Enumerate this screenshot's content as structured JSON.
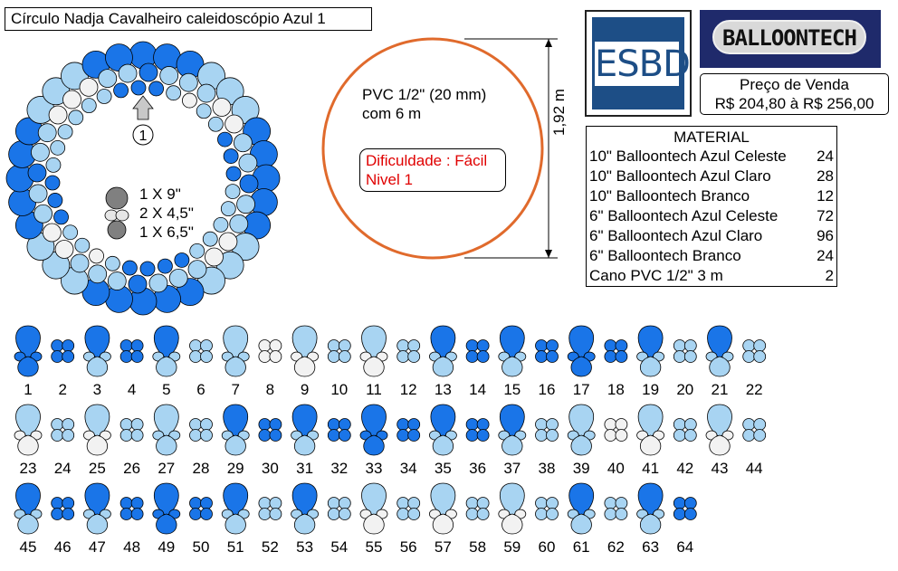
{
  "title": "Círculo Nadja Cavalheiro caleidoscópio  Azul 1",
  "logos": {
    "esbd": "ESBD",
    "balloontech": "BALLOONTECH"
  },
  "price": {
    "label": "Preço de Venda",
    "range": "R$ 204,80 à R$ 256,00"
  },
  "material": {
    "title": "MATERIAL",
    "items": [
      {
        "name": "10\" Balloontech Azul Celeste",
        "qty": "24"
      },
      {
        "name": "10\" Balloontech Azul Claro",
        "qty": "28"
      },
      {
        "name": "10\" Balloontech Branco",
        "qty": "12"
      },
      {
        "name": "6\" Balloontech Azul Celeste",
        "qty": "72"
      },
      {
        "name": "6\" Balloontech Azul Claro",
        "qty": "96"
      },
      {
        "name": "6\" Balloontech Branco",
        "qty": "24"
      },
      {
        "name": "Cano PVC 1/2\" 3 m",
        "qty": "2"
      }
    ]
  },
  "pvc": {
    "line1": "PVC 1/2\" (20 mm)",
    "line2": "com 6 m"
  },
  "difficulty": {
    "line1": "Dificuldade : Fácil",
    "line2": "Nivel 1"
  },
  "dimension": "1,92 m",
  "legend": {
    "line1": "1 X 9\"",
    "line2": "2 X 4,5\"",
    "line3": "1 X 6,5\""
  },
  "start_marker": "1",
  "colors": {
    "celeste": "#1a75e8",
    "claro": "#a8d4f2",
    "branco": "#f2f2f2",
    "gray": "#808080",
    "ring": "#e06a2c"
  },
  "sequence": [
    {
      "n": "1",
      "type": "pattern",
      "top": "celeste",
      "bottom": "celeste"
    },
    {
      "n": "2",
      "type": "cluster",
      "color": "celeste"
    },
    {
      "n": "3",
      "type": "pattern",
      "top": "celeste",
      "bottom": "claro"
    },
    {
      "n": "4",
      "type": "cluster",
      "color": "celeste"
    },
    {
      "n": "5",
      "type": "pattern",
      "top": "celeste",
      "bottom": "claro"
    },
    {
      "n": "6",
      "type": "cluster",
      "color": "claro"
    },
    {
      "n": "7",
      "type": "pattern",
      "top": "claro",
      "bottom": "claro"
    },
    {
      "n": "8",
      "type": "cluster",
      "color": "branco"
    },
    {
      "n": "9",
      "type": "pattern",
      "top": "claro",
      "bottom": "branco"
    },
    {
      "n": "10",
      "type": "cluster",
      "color": "claro"
    },
    {
      "n": "11",
      "type": "pattern",
      "top": "claro",
      "bottom": "branco"
    },
    {
      "n": "12",
      "type": "cluster",
      "color": "claro"
    },
    {
      "n": "13",
      "type": "pattern",
      "top": "celeste",
      "bottom": "claro"
    },
    {
      "n": "14",
      "type": "cluster",
      "color": "celeste"
    },
    {
      "n": "15",
      "type": "pattern",
      "top": "celeste",
      "bottom": "claro"
    },
    {
      "n": "16",
      "type": "cluster",
      "color": "celeste"
    },
    {
      "n": "17",
      "type": "pattern",
      "top": "celeste",
      "bottom": "celeste"
    },
    {
      "n": "18",
      "type": "cluster",
      "color": "celeste"
    },
    {
      "n": "19",
      "type": "pattern",
      "top": "celeste",
      "bottom": "claro"
    },
    {
      "n": "20",
      "type": "cluster",
      "color": "claro"
    },
    {
      "n": "21",
      "type": "pattern",
      "top": "celeste",
      "bottom": "claro"
    },
    {
      "n": "22",
      "type": "cluster",
      "color": "claro"
    },
    {
      "n": "23",
      "type": "pattern",
      "top": "claro",
      "bottom": "branco"
    },
    {
      "n": "24",
      "type": "cluster",
      "color": "claro"
    },
    {
      "n": "25",
      "type": "pattern",
      "top": "claro",
      "bottom": "branco"
    },
    {
      "n": "26",
      "type": "cluster",
      "color": "claro"
    },
    {
      "n": "27",
      "type": "pattern",
      "top": "claro",
      "bottom": "claro"
    },
    {
      "n": "28",
      "type": "cluster",
      "color": "claro"
    },
    {
      "n": "29",
      "type": "pattern",
      "top": "celeste",
      "bottom": "claro"
    },
    {
      "n": "30",
      "type": "cluster",
      "color": "celeste"
    },
    {
      "n": "31",
      "type": "pattern",
      "top": "celeste",
      "bottom": "claro"
    },
    {
      "n": "32",
      "type": "cluster",
      "color": "celeste"
    },
    {
      "n": "33",
      "type": "pattern",
      "top": "celeste",
      "bottom": "celeste"
    },
    {
      "n": "34",
      "type": "cluster",
      "color": "celeste"
    },
    {
      "n": "35",
      "type": "pattern",
      "top": "celeste",
      "bottom": "claro"
    },
    {
      "n": "36",
      "type": "cluster",
      "color": "celeste"
    },
    {
      "n": "37",
      "type": "pattern",
      "top": "celeste",
      "bottom": "claro"
    },
    {
      "n": "38",
      "type": "cluster",
      "color": "claro"
    },
    {
      "n": "39",
      "type": "pattern",
      "top": "claro",
      "bottom": "claro"
    },
    {
      "n": "40",
      "type": "cluster",
      "color": "branco"
    },
    {
      "n": "41",
      "type": "pattern",
      "top": "claro",
      "bottom": "branco"
    },
    {
      "n": "42",
      "type": "cluster",
      "color": "claro"
    },
    {
      "n": "43",
      "type": "pattern",
      "top": "claro",
      "bottom": "branco"
    },
    {
      "n": "44",
      "type": "cluster",
      "color": "claro"
    },
    {
      "n": "45",
      "type": "pattern",
      "top": "celeste",
      "bottom": "claro"
    },
    {
      "n": "46",
      "type": "cluster",
      "color": "celeste"
    },
    {
      "n": "47",
      "type": "pattern",
      "top": "celeste",
      "bottom": "claro"
    },
    {
      "n": "48",
      "type": "cluster",
      "color": "celeste"
    },
    {
      "n": "49",
      "type": "pattern",
      "top": "celeste",
      "bottom": "celeste"
    },
    {
      "n": "50",
      "type": "cluster",
      "color": "celeste"
    },
    {
      "n": "51",
      "type": "pattern",
      "top": "celeste",
      "bottom": "claro"
    },
    {
      "n": "52",
      "type": "cluster",
      "color": "claro"
    },
    {
      "n": "53",
      "type": "pattern",
      "top": "celeste",
      "bottom": "claro"
    },
    {
      "n": "54",
      "type": "cluster",
      "color": "claro"
    },
    {
      "n": "55",
      "type": "pattern",
      "top": "claro",
      "bottom": "branco"
    },
    {
      "n": "56",
      "type": "cluster",
      "color": "claro"
    },
    {
      "n": "57",
      "type": "pattern",
      "top": "claro",
      "bottom": "branco"
    },
    {
      "n": "58",
      "type": "cluster",
      "color": "claro"
    },
    {
      "n": "59",
      "type": "pattern",
      "top": "claro",
      "bottom": "branco"
    },
    {
      "n": "60",
      "type": "cluster",
      "color": "claro"
    },
    {
      "n": "61",
      "type": "pattern",
      "top": "celeste",
      "bottom": "claro"
    },
    {
      "n": "62",
      "type": "cluster",
      "color": "claro"
    },
    {
      "n": "63",
      "type": "pattern",
      "top": "celeste",
      "bottom": "claro"
    },
    {
      "n": "64",
      "type": "cluster",
      "color": "celeste"
    }
  ]
}
